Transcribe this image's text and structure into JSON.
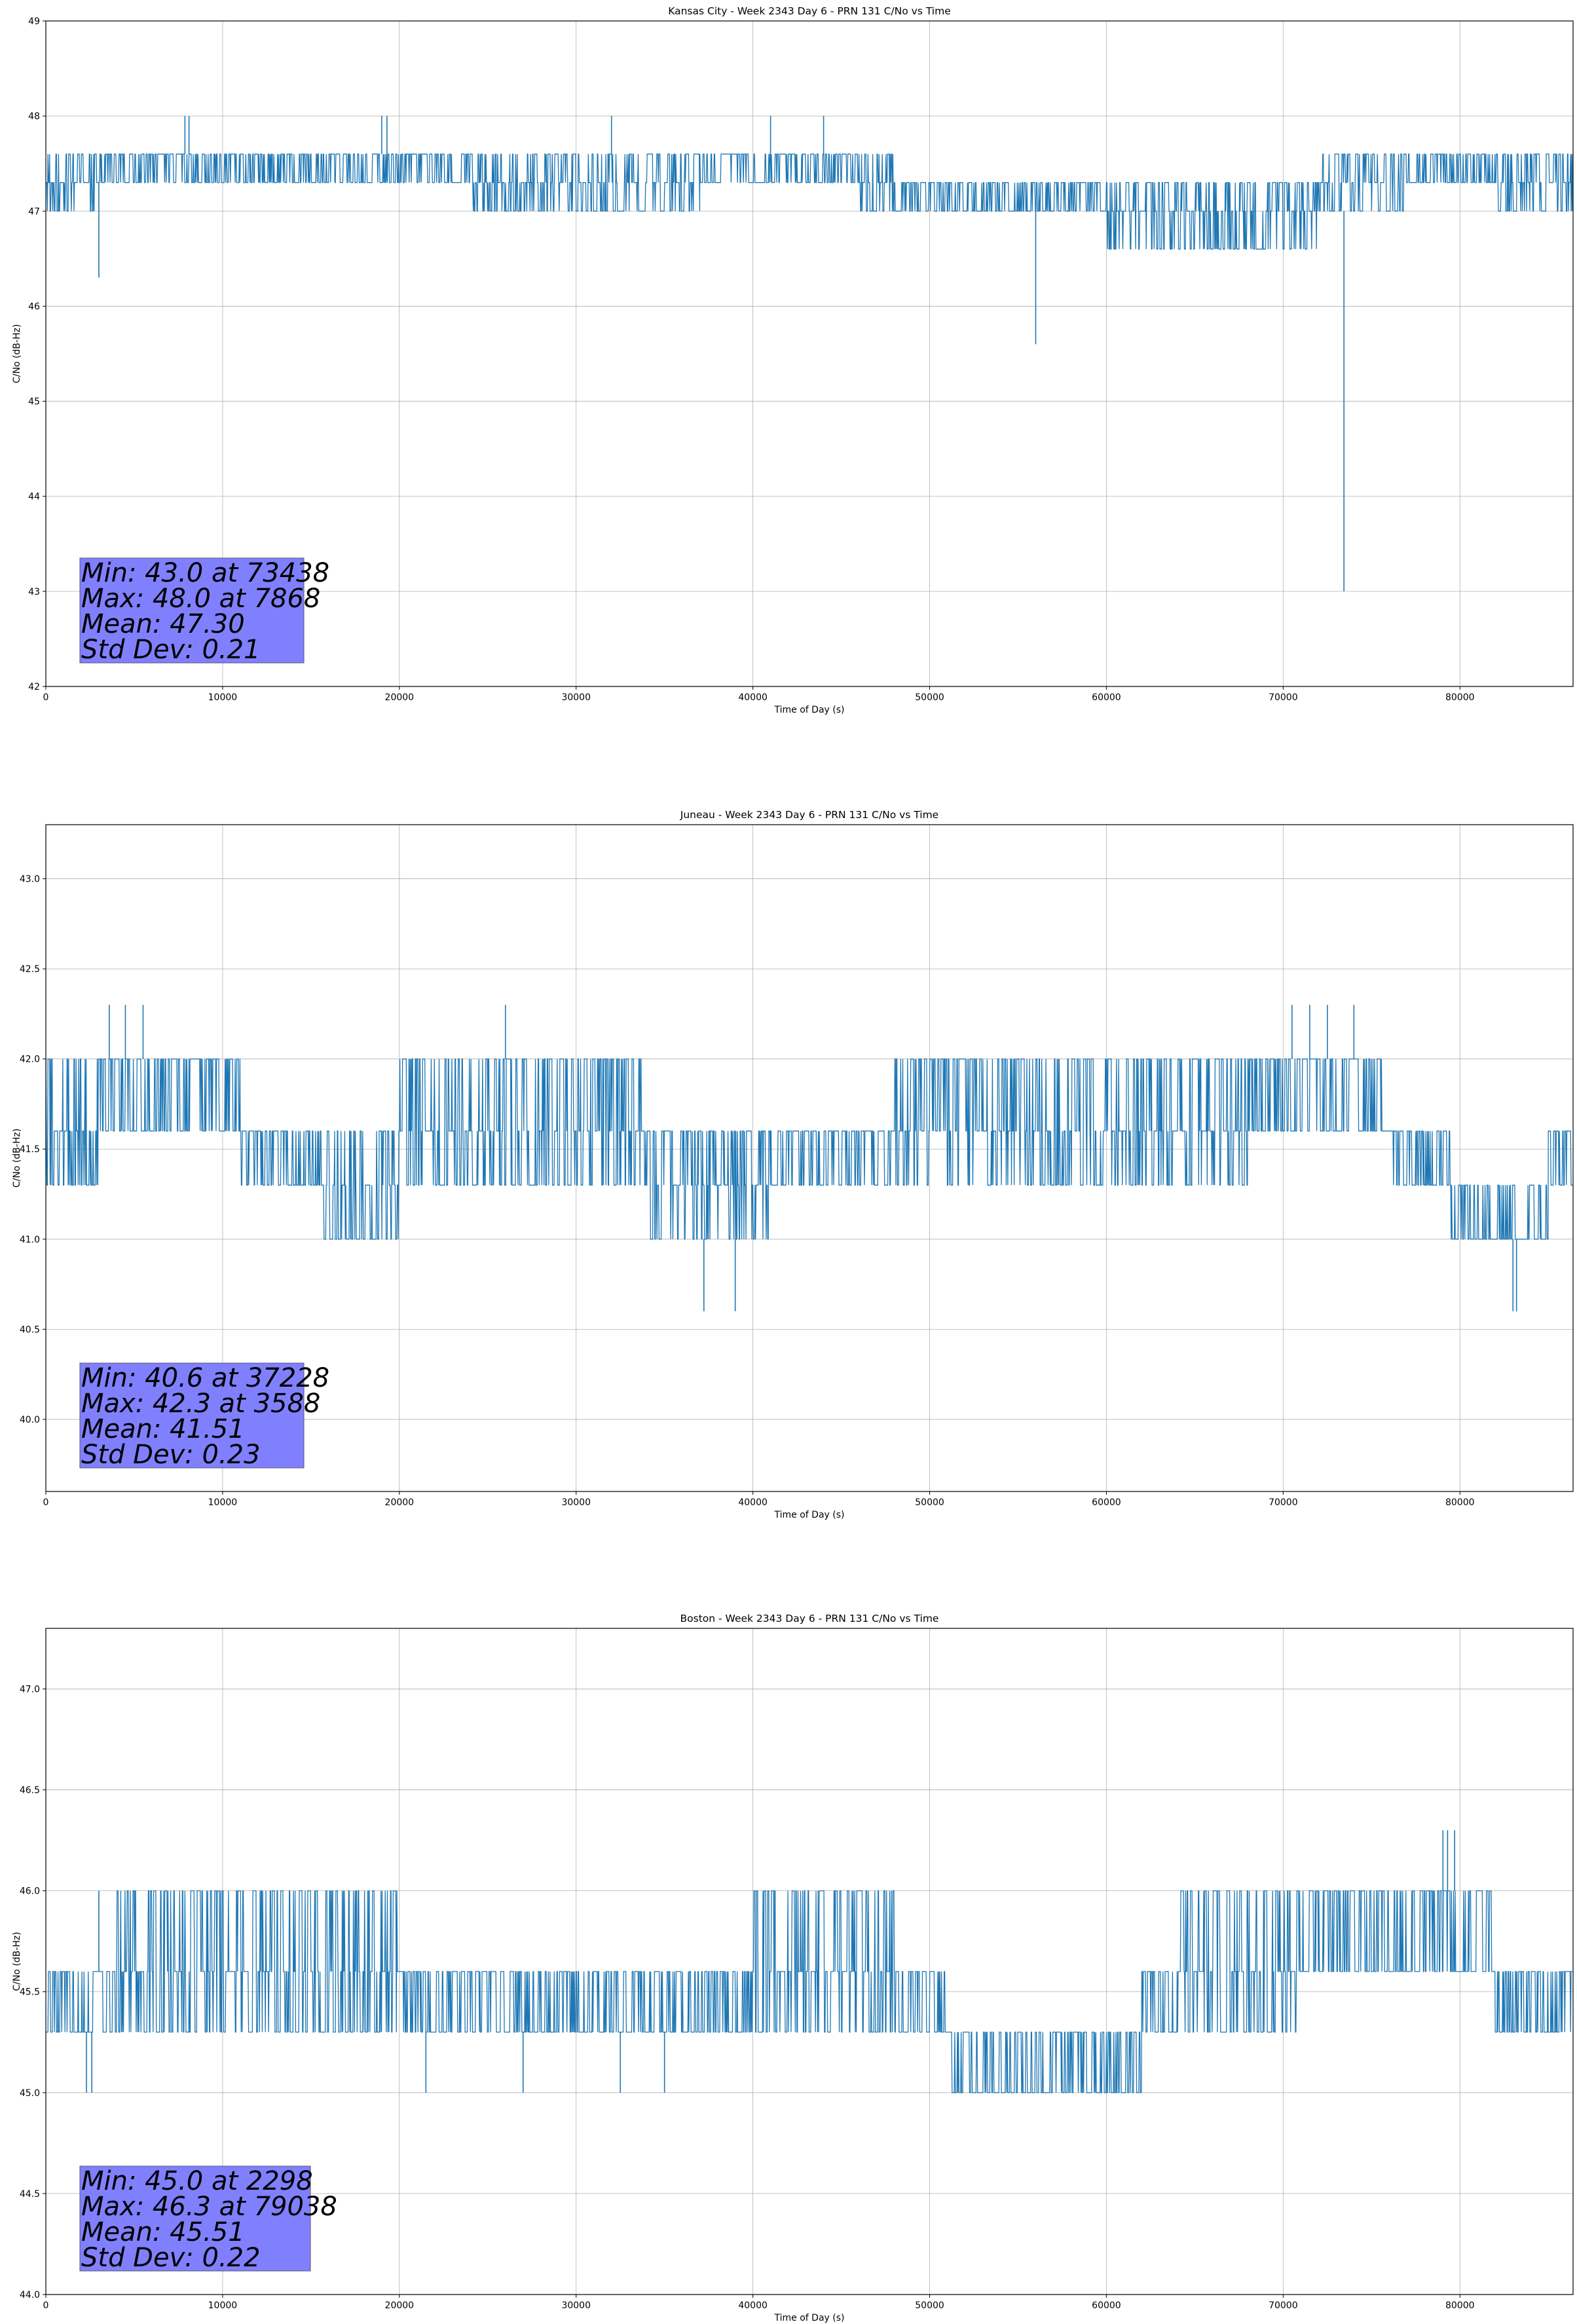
{
  "chart_data": [
    {
      "type": "line",
      "title": "Kansas City - Week 2343 Day 6 - PRN 131 C/No vs Time",
      "xlabel": "Time of Day (s)",
      "ylabel": "C/No (dB-Hz)",
      "xlim": [
        0,
        86400
      ],
      "ylim": [
        42,
        49
      ],
      "xticks": [
        0,
        10000,
        20000,
        30000,
        40000,
        50000,
        60000,
        70000,
        80000
      ],
      "yticks": [
        42,
        43,
        44,
        45,
        46,
        47,
        48,
        49
      ],
      "yticklabels": [
        "42",
        "43",
        "44",
        "45",
        "46",
        "47",
        "48",
        "49"
      ],
      "grid": true,
      "color": "#1f77b4",
      "series": [
        {
          "name": "C/No",
          "segments": [
            {
              "start": 0,
              "end": 3000,
              "levels": [
                47.0,
                47.3,
                47.6
              ],
              "spike_rate": 0.15
            },
            {
              "start": 3000,
              "end": 24000,
              "levels": [
                47.3,
                47.6
              ],
              "spike_rate": 0.05
            },
            {
              "start": 24000,
              "end": 27000,
              "levels": [
                47.0,
                47.3,
                47.6
              ],
              "spike_rate": 0.1
            },
            {
              "start": 27000,
              "end": 37000,
              "levels": [
                47.0,
                47.3,
                47.6
              ],
              "spike_rate": 0.05
            },
            {
              "start": 37000,
              "end": 46000,
              "levels": [
                47.3,
                47.6
              ],
              "spike_rate": 0.06
            },
            {
              "start": 46000,
              "end": 48000,
              "levels": [
                47.0,
                47.3,
                47.6
              ],
              "spike_rate": 0.05
            },
            {
              "start": 48000,
              "end": 60000,
              "levels": [
                47.0,
                47.3
              ],
              "spike_rate": 0.03
            },
            {
              "start": 60000,
              "end": 72000,
              "levels": [
                46.6,
                47.0,
                47.3
              ],
              "spike_rate": 0.04
            },
            {
              "start": 72000,
              "end": 77000,
              "levels": [
                47.0,
                47.3,
                47.6
              ],
              "spike_rate": 0.06
            },
            {
              "start": 77000,
              "end": 82000,
              "levels": [
                47.3,
                47.6
              ],
              "spike_rate": 0.04
            },
            {
              "start": 82000,
              "end": 86400,
              "levels": [
                47.0,
                47.3,
                47.6
              ],
              "spike_rate": 0.05
            }
          ],
          "spikes": [
            [
              3000,
              46.3
            ],
            [
              7868,
              48.0
            ],
            [
              8100,
              48.0
            ],
            [
              19000,
              48.0
            ],
            [
              19300,
              48.0
            ],
            [
              32000,
              48.0
            ],
            [
              41000,
              48.0
            ],
            [
              44000,
              48.0
            ],
            [
              56000,
              45.6
            ],
            [
              73438,
              43.0
            ]
          ]
        }
      ],
      "stats": {
        "line1": "Min: 43.0 at 73438",
        "line2": "Max: 48.0 at 7868",
        "line3": "Mean: 47.30",
        "line4": "Std Dev: 0.21"
      }
    },
    {
      "type": "line",
      "title": "Juneau - Week 2343 Day 6 - PRN 131 C/No vs Time",
      "xlabel": "Time of Day (s)",
      "ylabel": "C/No (dB-Hz)",
      "xlim": [
        0,
        86400
      ],
      "ylim": [
        39.6,
        43.3
      ],
      "xticks": [
        0,
        10000,
        20000,
        30000,
        40000,
        50000,
        60000,
        70000,
        80000
      ],
      "yticks": [
        40.0,
        40.5,
        41.0,
        41.5,
        42.0,
        42.5,
        43.0
      ],
      "yticklabels": [
        "40.0",
        "40.5",
        "41.0",
        "41.5",
        "42.0",
        "42.5",
        "43.0"
      ],
      "grid": true,
      "color": "#1f77b4",
      "series": [
        {
          "name": "C/No",
          "segments": [
            {
              "start": 0,
              "end": 3000,
              "levels": [
                41.3,
                41.6,
                42.0
              ],
              "spike_rate": 0.1
            },
            {
              "start": 3000,
              "end": 11000,
              "levels": [
                41.6,
                42.0
              ],
              "spike_rate": 0.06
            },
            {
              "start": 11000,
              "end": 15500,
              "levels": [
                41.3,
                41.6
              ],
              "spike_rate": 0.05
            },
            {
              "start": 15500,
              "end": 20000,
              "levels": [
                41.0,
                41.3,
                41.6
              ],
              "spike_rate": 0.05
            },
            {
              "start": 20000,
              "end": 25000,
              "levels": [
                41.3,
                41.6,
                42.0
              ],
              "spike_rate": 0.06
            },
            {
              "start": 25000,
              "end": 28000,
              "levels": [
                41.3,
                41.6,
                42.0
              ],
              "spike_rate": 0.12
            },
            {
              "start": 28000,
              "end": 34000,
              "levels": [
                41.3,
                41.6,
                42.0
              ],
              "spike_rate": 0.08
            },
            {
              "start": 34000,
              "end": 41000,
              "levels": [
                41.0,
                41.3,
                41.6
              ],
              "spike_rate": 0.06
            },
            {
              "start": 41000,
              "end": 48000,
              "levels": [
                41.3,
                41.6
              ],
              "spike_rate": 0.04
            },
            {
              "start": 48000,
              "end": 60000,
              "levels": [
                41.3,
                41.6,
                42.0
              ],
              "spike_rate": 0.06
            },
            {
              "start": 60000,
              "end": 68000,
              "levels": [
                41.3,
                41.6,
                42.0
              ],
              "spike_rate": 0.08
            },
            {
              "start": 68000,
              "end": 76000,
              "levels": [
                41.6,
                42.0
              ],
              "spike_rate": 0.06
            },
            {
              "start": 76000,
              "end": 79500,
              "levels": [
                41.3,
                41.6
              ],
              "spike_rate": 0.04
            },
            {
              "start": 79500,
              "end": 85000,
              "levels": [
                41.0,
                41.3
              ],
              "spike_rate": 0.04
            },
            {
              "start": 85000,
              "end": 86400,
              "levels": [
                41.3,
                41.6
              ],
              "spike_rate": 0.05
            }
          ],
          "spikes": [
            [
              3588,
              42.3
            ],
            [
              4500,
              42.3
            ],
            [
              5500,
              42.3
            ],
            [
              26000,
              42.3
            ],
            [
              37228,
              40.6
            ],
            [
              39000,
              40.6
            ],
            [
              70500,
              42.3
            ],
            [
              71500,
              42.3
            ],
            [
              72500,
              42.3
            ],
            [
              74000,
              42.3
            ],
            [
              83000,
              40.6
            ],
            [
              83200,
              40.6
            ]
          ]
        }
      ],
      "stats": {
        "line1": "Min: 40.6 at 37228",
        "line2": "Max: 42.3 at 3588",
        "line3": "Mean: 41.51",
        "line4": "Std Dev: 0.23"
      }
    },
    {
      "type": "line",
      "title": "Boston - Week 2343 Day 6 - PRN 131 C/No vs Time",
      "xlabel": "Time of Day (s)",
      "ylabel": "C/No (dB-Hz)",
      "xlim": [
        0,
        86400
      ],
      "ylim": [
        44.0,
        47.3
      ],
      "xticks": [
        0,
        10000,
        20000,
        30000,
        40000,
        50000,
        60000,
        70000,
        80000
      ],
      "yticks": [
        44.0,
        44.5,
        45.0,
        45.5,
        46.0,
        46.5,
        47.0
      ],
      "yticklabels": [
        "44.0",
        "44.5",
        "45.0",
        "45.5",
        "46.0",
        "46.5",
        "47.0"
      ],
      "grid": true,
      "color": "#1f77b4",
      "series": [
        {
          "name": "C/No",
          "segments": [
            {
              "start": 0,
              "end": 4000,
              "levels": [
                45.3,
                45.6
              ],
              "spike_rate": 0.05
            },
            {
              "start": 4000,
              "end": 12000,
              "levels": [
                45.3,
                45.6,
                46.0
              ],
              "spike_rate": 0.1
            },
            {
              "start": 12000,
              "end": 20000,
              "levels": [
                45.3,
                45.6,
                46.0
              ],
              "spike_rate": 0.08
            },
            {
              "start": 20000,
              "end": 40000,
              "levels": [
                45.3,
                45.6
              ],
              "spike_rate": 0.05
            },
            {
              "start": 40000,
              "end": 48000,
              "levels": [
                45.3,
                45.6,
                46.0
              ],
              "spike_rate": 0.05
            },
            {
              "start": 48000,
              "end": 51000,
              "levels": [
                45.3,
                45.6
              ],
              "spike_rate": 0.05
            },
            {
              "start": 51000,
              "end": 62000,
              "levels": [
                45.0,
                45.3
              ],
              "spike_rate": 0.05
            },
            {
              "start": 62000,
              "end": 64000,
              "levels": [
                45.3,
                45.6
              ],
              "spike_rate": 0.05
            },
            {
              "start": 64000,
              "end": 71000,
              "levels": [
                45.3,
                45.6,
                46.0
              ],
              "spike_rate": 0.08
            },
            {
              "start": 71000,
              "end": 82000,
              "levels": [
                45.6,
                46.0
              ],
              "spike_rate": 0.05
            },
            {
              "start": 82000,
              "end": 86400,
              "levels": [
                45.3,
                45.6
              ],
              "spike_rate": 0.05
            }
          ],
          "spikes": [
            [
              2298,
              45.0
            ],
            [
              2600,
              45.0
            ],
            [
              3000,
              46.0
            ],
            [
              21500,
              45.0
            ],
            [
              27000,
              45.0
            ],
            [
              32500,
              45.0
            ],
            [
              35000,
              45.0
            ],
            [
              79038,
              46.3
            ],
            [
              79300,
              46.3
            ],
            [
              79700,
              46.3
            ]
          ]
        }
      ],
      "stats": {
        "line1": "Min: 45.0 at 2298",
        "line2": "Max: 46.3 at 79038",
        "line3": "Mean: 45.51",
        "line4": "Std Dev: 0.22"
      }
    }
  ]
}
